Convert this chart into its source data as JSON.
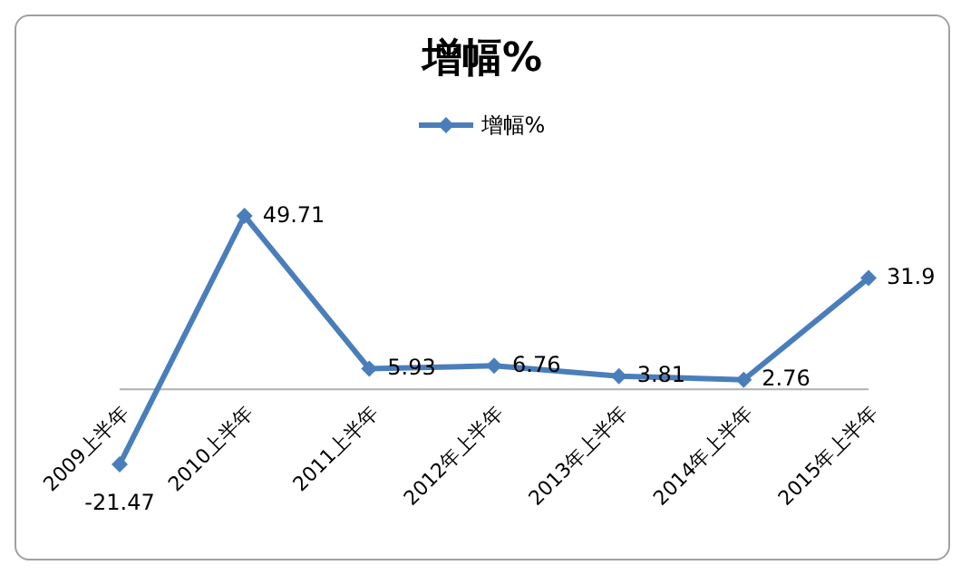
{
  "chart_data": {
    "type": "line",
    "title": "增幅%",
    "categories": [
      "2009上半年",
      "2010上半年",
      "2011上半年",
      "2012年上半年",
      "2013年上半年",
      "2014年上半年",
      "2015年上半年"
    ],
    "series": [
      {
        "name": "增幅%",
        "color": "#4a7ebb",
        "values": [
          -21.47,
          49.71,
          5.93,
          6.76,
          3.81,
          2.76,
          31.9
        ]
      }
    ],
    "data_labels": true,
    "legend": "top",
    "marker": "diamond",
    "line_style": "solid",
    "tick_labels": "x"
  }
}
